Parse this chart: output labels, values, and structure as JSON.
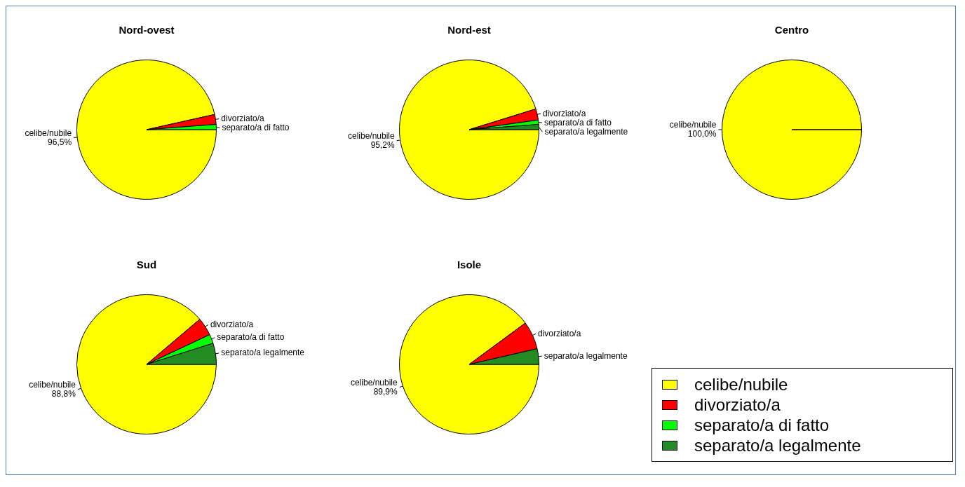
{
  "chart_data": [
    {
      "type": "pie",
      "title": "Nord-ovest",
      "categories": [
        "celibe/nubile",
        "divorziato/a",
        "separato/a di fatto"
      ],
      "values": [
        96.5,
        2.3,
        1.2
      ],
      "colors": [
        "#ffff00",
        "#ff0000",
        "#00ff00"
      ],
      "value_labels": [
        "96,5%",
        null,
        null
      ]
    },
    {
      "type": "pie",
      "title": "Nord-est",
      "categories": [
        "celibe/nubile",
        "divorziato/a",
        "separato/a di fatto",
        "separato/a legalmente"
      ],
      "values": [
        95.2,
        2.6,
        1.0,
        1.2
      ],
      "colors": [
        "#ffff00",
        "#ff0000",
        "#00ff00",
        "#228b22"
      ],
      "value_labels": [
        "95,2%",
        null,
        null,
        null
      ],
      "legend": "bottom right"
    },
    {
      "type": "pie",
      "title": "Centro",
      "categories": [
        "celibe/nubile"
      ],
      "values": [
        100.0
      ],
      "colors": [
        "#ffff00"
      ],
      "value_labels": [
        "100,0%"
      ]
    },
    {
      "type": "pie",
      "title": "Sud",
      "categories": [
        "celibe/nubile",
        "divorziato/a",
        "separato/a di fatto",
        "separato/a legalmente"
      ],
      "values": [
        88.8,
        4.2,
        2.1,
        4.9
      ],
      "colors": [
        "#ffff00",
        "#ff0000",
        "#00ff00",
        "#228b22"
      ],
      "value_labels": [
        "88,8%",
        null,
        null,
        null
      ]
    },
    {
      "type": "pie",
      "title": "Isole",
      "categories": [
        "celibe/nubile",
        "divorziato/a",
        "separato/a legalmente"
      ],
      "values": [
        89.9,
        6.5,
        3.6
      ],
      "colors": [
        "#ffff00",
        "#ff0000",
        "#228b22"
      ],
      "value_labels": [
        "89,9%",
        null,
        null
      ]
    }
  ]
}
